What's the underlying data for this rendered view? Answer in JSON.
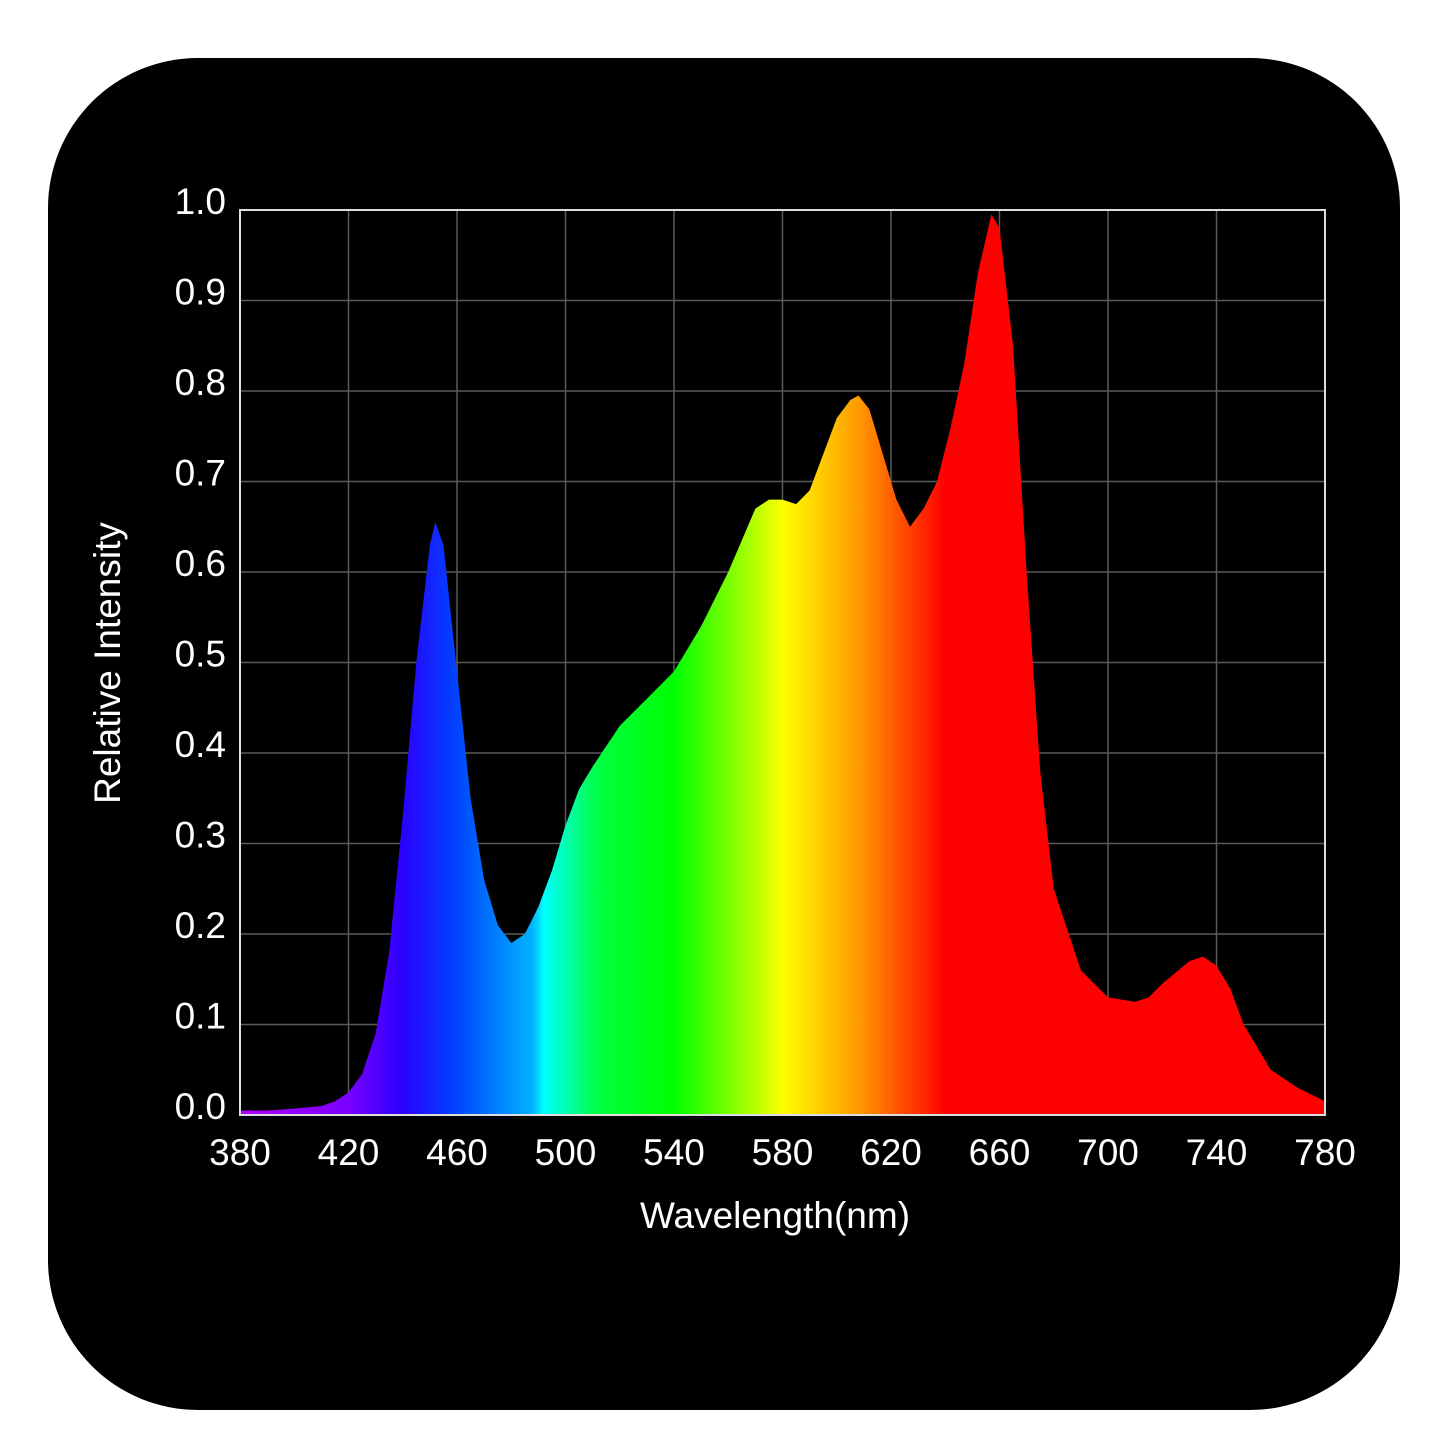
{
  "chart_data": {
    "type": "area",
    "xlabel": "Wavelength(nm)",
    "ylabel": "Relative Intensity",
    "x": [
      380,
      390,
      400,
      410,
      415,
      420,
      425,
      430,
      435,
      440,
      445,
      450,
      452,
      455,
      460,
      465,
      470,
      475,
      480,
      485,
      490,
      495,
      500,
      505,
      510,
      520,
      530,
      540,
      550,
      560,
      570,
      575,
      580,
      585,
      590,
      595,
      600,
      605,
      608,
      612,
      618,
      622,
      627,
      632,
      637,
      642,
      647,
      652,
      657,
      660,
      665,
      670,
      675,
      680,
      690,
      700,
      710,
      715,
      720,
      730,
      735,
      740,
      745,
      750,
      760,
      770,
      780
    ],
    "y": [
      0.005,
      0.005,
      0.007,
      0.01,
      0.015,
      0.025,
      0.045,
      0.09,
      0.18,
      0.33,
      0.5,
      0.63,
      0.655,
      0.63,
      0.49,
      0.35,
      0.26,
      0.21,
      0.19,
      0.2,
      0.23,
      0.27,
      0.32,
      0.36,
      0.385,
      0.43,
      0.46,
      0.49,
      0.54,
      0.6,
      0.67,
      0.68,
      0.68,
      0.675,
      0.69,
      0.73,
      0.77,
      0.79,
      0.795,
      0.78,
      0.72,
      0.68,
      0.65,
      0.67,
      0.7,
      0.76,
      0.83,
      0.93,
      0.995,
      0.98,
      0.85,
      0.6,
      0.38,
      0.25,
      0.16,
      0.13,
      0.125,
      0.13,
      0.145,
      0.17,
      0.175,
      0.165,
      0.14,
      0.1,
      0.05,
      0.03,
      0.015
    ],
    "xlim": [
      380,
      780
    ],
    "xticks": [
      380,
      420,
      460,
      500,
      540,
      580,
      620,
      660,
      700,
      740,
      780
    ],
    "ylim": [
      0,
      1
    ],
    "yticks": [
      {
        "value": 0,
        "label": "0.0"
      },
      0.1,
      0.2,
      0.3,
      0.4,
      0.5,
      0.6,
      0.7,
      0.8,
      0.9,
      {
        "value": 1,
        "label": "1.0"
      }
    ],
    "grid": true
  }
}
